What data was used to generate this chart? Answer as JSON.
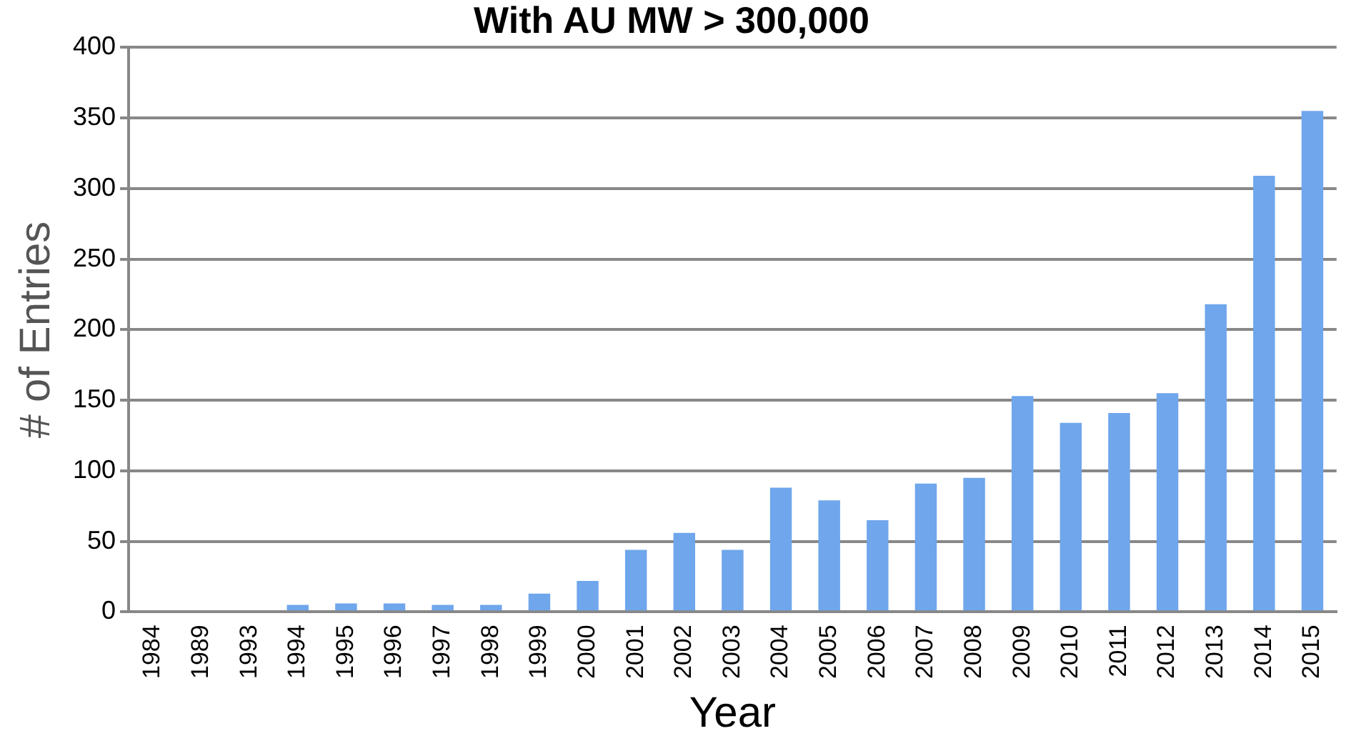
{
  "chart_data": {
    "type": "bar",
    "title": "With AU MW > 300,000",
    "xlabel": "Year",
    "ylabel": "# of Entries",
    "categories": [
      "1984",
      "1989",
      "1993",
      "1994",
      "1995",
      "1996",
      "1997",
      "1998",
      "1999",
      "2000",
      "2001",
      "2002",
      "2003",
      "2004",
      "2005",
      "2006",
      "2007",
      "2008",
      "2009",
      "2010",
      "2011",
      "2012",
      "2013",
      "2014",
      "2015"
    ],
    "values": [
      0,
      0,
      0,
      5,
      6,
      6,
      5,
      5,
      13,
      22,
      44,
      56,
      44,
      88,
      79,
      65,
      91,
      95,
      153,
      134,
      141,
      155,
      218,
      309,
      355
    ],
    "color": "#6fa6ec",
    "ylim": [
      0,
      400
    ],
    "yticks": [
      0,
      50,
      100,
      150,
      200,
      250,
      300,
      350,
      400
    ],
    "grid": "y",
    "legend": false
  }
}
